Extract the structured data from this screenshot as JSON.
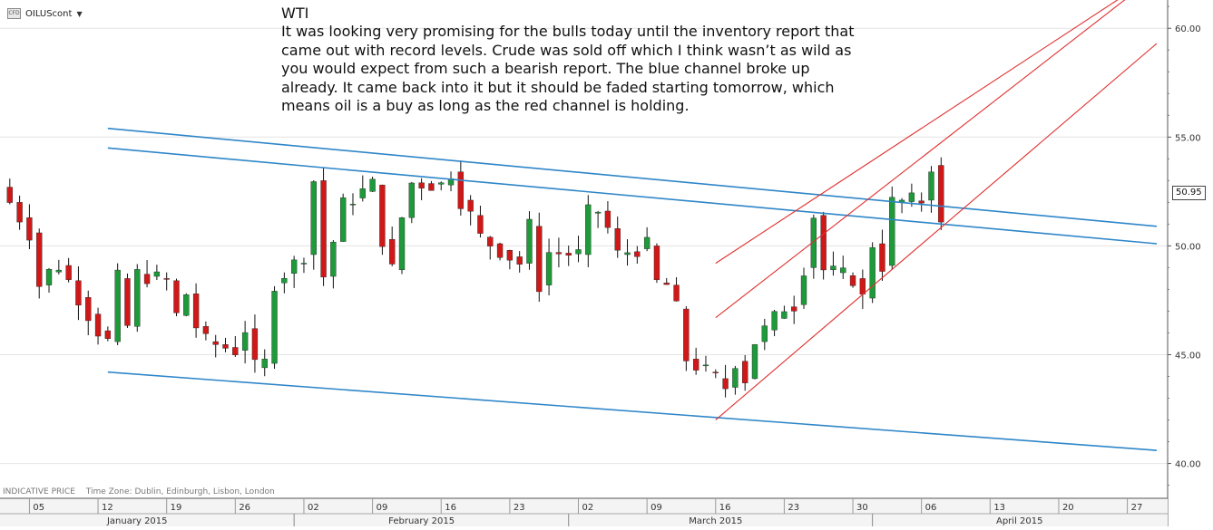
{
  "symbol": {
    "name": "OILUScont",
    "icon": "cfd-instrument-icon",
    "dropdown_icon": "caret-down-icon"
  },
  "annotation": {
    "title": "WTI",
    "lines": [
      "It was looking very promising for the bulls today until the inventory report that",
      "came out with record levels. Crude was sold off which I think wasn’t as wild as",
      "you would expect from such a bearish report. The blue channel broke up",
      "already. It came back into it but it should be faded starting tomorrow, which",
      "means oil is a buy as long as the red channel is holding."
    ]
  },
  "footer": {
    "price_type": "INDICATIVE PRICE",
    "timezone": "Time Zone: Dublin, Edinburgh, Lisbon, London"
  },
  "colors": {
    "up": "#1e9a3a",
    "down": "#d01818",
    "wick": "#111111",
    "blue_channel": "#2e86c8",
    "red_channel": "#e03030",
    "grid": "#e4e4e4",
    "axis": "#555555"
  },
  "chart_data": {
    "type": "candlestick",
    "instrument": "OILUScont",
    "last_price": "50.95",
    "y_ticks": [
      "40.00",
      "45.00",
      "50.00",
      "55.00",
      "60.00"
    ],
    "ylim": [
      38.4,
      61.3
    ],
    "day_ticks": [
      {
        "label": "05",
        "date": "2015-01-05"
      },
      {
        "label": "12",
        "date": "2015-01-12"
      },
      {
        "label": "19",
        "date": "2015-01-19"
      },
      {
        "label": "26",
        "date": "2015-01-26"
      },
      {
        "label": "02",
        "date": "2015-02-02"
      },
      {
        "label": "09",
        "date": "2015-02-09"
      },
      {
        "label": "16",
        "date": "2015-02-16"
      },
      {
        "label": "23",
        "date": "2015-02-23"
      },
      {
        "label": "02",
        "date": "2015-03-02"
      },
      {
        "label": "09",
        "date": "2015-03-09"
      },
      {
        "label": "16",
        "date": "2015-03-16"
      },
      {
        "label": "23",
        "date": "2015-03-23"
      },
      {
        "label": "30",
        "date": "2015-03-30"
      },
      {
        "label": "06",
        "date": "2015-04-06"
      },
      {
        "label": "13",
        "date": "2015-04-13"
      },
      {
        "label": "20",
        "date": "2015-04-20"
      },
      {
        "label": "27",
        "date": "2015-04-27"
      }
    ],
    "month_labels": [
      {
        "label": "January 2015",
        "center_date": "2015-01-16"
      },
      {
        "label": "February 2015",
        "center_date": "2015-02-14"
      },
      {
        "label": "March 2015",
        "center_date": "2015-03-16"
      },
      {
        "label": "April 2015",
        "center_date": "2015-04-16"
      }
    ],
    "month_boundaries": [
      "2015-02-01",
      "2015-03-01",
      "2015-04-01"
    ],
    "x_range": [
      "2015-01-02",
      "2015-04-30"
    ],
    "series": [
      {
        "name": "price",
        "points": [
          [
            "2015-01-02",
            52.7
          ],
          [
            "2015-01-05",
            50.6
          ],
          [
            "2015-01-06",
            48.2
          ],
          [
            "2015-01-07",
            48.8
          ],
          [
            "2015-01-08",
            49.1
          ],
          [
            "2015-01-09",
            48.4
          ],
          [
            "2015-01-12",
            46.1
          ],
          [
            "2015-01-13",
            45.6
          ],
          [
            "2015-01-14",
            48.5
          ],
          [
            "2015-01-15",
            46.3
          ],
          [
            "2015-01-16",
            48.7
          ],
          [
            "2015-01-19",
            48.4
          ],
          [
            "2015-01-20",
            46.8
          ],
          [
            "2015-01-21",
            47.8
          ],
          [
            "2015-01-22",
            46.3
          ],
          [
            "2015-01-23",
            45.6
          ],
          [
            "2015-01-26",
            45.2
          ],
          [
            "2015-01-27",
            46.2
          ],
          [
            "2015-01-28",
            44.4
          ],
          [
            "2015-01-29",
            44.6
          ],
          [
            "2015-01-30",
            48.3
          ],
          [
            "2015-02-02",
            49.6
          ],
          [
            "2015-02-03",
            53.0
          ],
          [
            "2015-02-04",
            48.6
          ],
          [
            "2015-02-05",
            50.2
          ],
          [
            "2015-02-06",
            51.9
          ],
          [
            "2015-02-09",
            52.8
          ],
          [
            "2015-02-10",
            50.3
          ],
          [
            "2015-02-11",
            48.9
          ],
          [
            "2015-02-12",
            51.3
          ],
          [
            "2015-02-13",
            52.9
          ],
          [
            "2015-02-16",
            52.8
          ],
          [
            "2015-02-17",
            53.4
          ],
          [
            "2015-02-18",
            52.1
          ],
          [
            "2015-02-19",
            51.4
          ],
          [
            "2015-02-20",
            50.4
          ],
          [
            "2015-02-23",
            49.5
          ],
          [
            "2015-02-24",
            49.2
          ],
          [
            "2015-02-25",
            50.9
          ],
          [
            "2015-02-26",
            48.2
          ],
          [
            "2015-02-27",
            49.7
          ],
          [
            "2015-03-02",
            49.6
          ],
          [
            "2015-03-03",
            51.5
          ],
          [
            "2015-03-04",
            51.6
          ],
          [
            "2015-03-05",
            50.8
          ],
          [
            "2015-03-06",
            49.6
          ],
          [
            "2015-03-09",
            50.0
          ],
          [
            "2015-03-10",
            48.3
          ],
          [
            "2015-03-11",
            48.2
          ],
          [
            "2015-03-12",
            47.1
          ],
          [
            "2015-03-13",
            44.8
          ],
          [
            "2015-03-16",
            43.9
          ],
          [
            "2015-03-17",
            43.5
          ],
          [
            "2015-03-18",
            44.7
          ],
          [
            "2015-03-19",
            43.9
          ],
          [
            "2015-03-20",
            45.6
          ],
          [
            "2015-03-23",
            47.2
          ],
          [
            "2015-03-24",
            47.3
          ],
          [
            "2015-03-25",
            49.0
          ],
          [
            "2015-03-26",
            51.4
          ],
          [
            "2015-03-27",
            48.9
          ],
          [
            "2015-03-30",
            48.5
          ],
          [
            "2015-03-31",
            47.6
          ],
          [
            "2015-04-01",
            50.1
          ],
          [
            "2015-04-02",
            49.1
          ],
          [
            "2015-04-03",
            52.0
          ],
          [
            "2015-04-06",
            52.1
          ],
          [
            "2015-04-07",
            53.7
          ],
          [
            "2015-04-08",
            50.9
          ]
        ]
      }
    ],
    "channels": {
      "blue": [
        {
          "from": [
            "2015-01-13",
            55.4
          ],
          "to": [
            "2015-04-30",
            50.9
          ]
        },
        {
          "from": [
            "2015-01-13",
            54.5
          ],
          "to": [
            "2015-04-30",
            50.1
          ]
        },
        {
          "from": [
            "2015-01-13",
            44.2
          ],
          "to": [
            "2015-04-30",
            40.6
          ]
        }
      ],
      "red": [
        {
          "from": [
            "2015-03-16",
            49.2
          ],
          "to": [
            "2015-04-27",
            61.6
          ]
        },
        {
          "from": [
            "2015-03-16",
            46.7
          ],
          "to": [
            "2015-04-27",
            61.4
          ]
        },
        {
          "from": [
            "2015-03-16",
            42.0
          ],
          "to": [
            "2015-04-30",
            59.3
          ]
        }
      ]
    }
  }
}
